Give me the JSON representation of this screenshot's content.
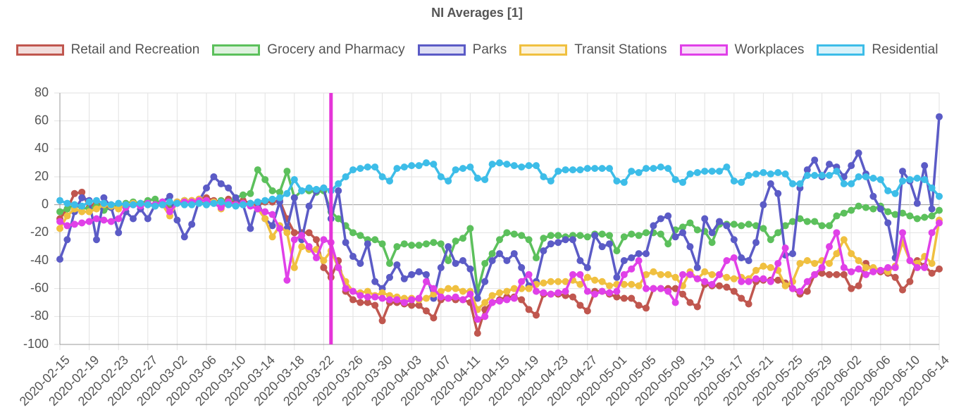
{
  "chart_data": {
    "type": "line",
    "title": "NI Averages [1]",
    "categories": [
      "2020-02-15",
      null,
      null,
      null,
      "2020-02-19",
      null,
      null,
      null,
      "2020-02-23",
      null,
      null,
      null,
      "2020-02-27",
      null,
      null,
      null,
      "2020-03-02",
      null,
      null,
      null,
      "2020-03-06",
      null,
      null,
      null,
      "2020-03-10",
      null,
      null,
      null,
      "2020-03-14",
      null,
      null,
      null,
      "2020-03-18",
      null,
      null,
      null,
      "2020-03-22",
      null,
      null,
      null,
      "2020-03-26",
      null,
      null,
      null,
      "2020-03-30",
      null,
      null,
      null,
      "2020-04-03",
      null,
      null,
      null,
      "2020-04-07",
      null,
      null,
      null,
      "2020-04-11",
      null,
      null,
      null,
      "2020-04-15",
      null,
      null,
      null,
      "2020-04-19",
      null,
      null,
      null,
      "2020-04-23",
      null,
      null,
      null,
      "2020-04-27",
      null,
      null,
      null,
      "2020-05-01",
      null,
      null,
      null,
      "2020-05-05",
      null,
      null,
      null,
      "2020-05-09",
      null,
      null,
      null,
      "2020-05-13",
      null,
      null,
      null,
      "2020-05-17",
      null,
      null,
      null,
      "2020-05-21",
      null,
      null,
      null,
      "2020-05-25",
      null,
      null,
      null,
      "2020-05-29",
      null,
      null,
      null,
      "2020-06-02",
      null,
      null,
      null,
      "2020-06-06",
      null,
      null,
      null,
      "2020-06-10",
      null,
      null,
      null,
      "2020-06-14"
    ],
    "series": [
      {
        "name": "Retail and Recreation",
        "color": "#c0574f",
        "values": [
          -10,
          -3,
          8,
          9,
          -2,
          2,
          -3,
          0,
          -2,
          -1,
          0,
          -1,
          1,
          0,
          2,
          0,
          2,
          3,
          3,
          4,
          5,
          3,
          2,
          4,
          2,
          3,
          1,
          0,
          2,
          2,
          3,
          -10,
          -20,
          -20,
          -20,
          -25,
          -45,
          -52,
          -40,
          -62,
          -68,
          -70,
          -70,
          -72,
          -83,
          -70,
          -70,
          -71,
          -72,
          -72,
          -76,
          -81,
          -68,
          -67,
          -68,
          -68,
          -70,
          -92,
          -75,
          -70,
          -68,
          -66,
          -66,
          -68,
          -75,
          -79,
          -64,
          -64,
          -64,
          -65,
          -66,
          -72,
          -76,
          -62,
          -62,
          -64,
          -66,
          -67,
          -67,
          -72,
          -74,
          -60,
          -60,
          -60,
          -60,
          -64,
          -70,
          -73,
          -57,
          -58,
          -58,
          -59,
          -62,
          -67,
          -71,
          -55,
          -54,
          -54,
          -54,
          -56,
          -60,
          -64,
          -62,
          -50,
          -49,
          -50,
          -50,
          -50,
          -60,
          -58,
          -42,
          -47,
          -48,
          -49,
          -52,
          -61,
          -55,
          -40,
          -44,
          -49,
          -46
        ]
      },
      {
        "name": "Grocery and Pharmacy",
        "color": "#5cc05c",
        "values": [
          -5,
          -3,
          0,
          -2,
          -3,
          -1,
          -4,
          -2,
          0,
          1,
          2,
          1,
          3,
          4,
          0,
          1,
          2,
          3,
          1,
          2,
          0,
          1,
          3,
          2,
          5,
          7,
          8,
          25,
          18,
          10,
          9,
          24,
          5,
          10,
          10,
          9,
          10,
          -5,
          -10,
          -15,
          -20,
          -22,
          -25,
          -25,
          -28,
          -42,
          -30,
          -28,
          -29,
          -29,
          -28,
          -27,
          -28,
          -40,
          -26,
          -24,
          -17,
          -62,
          -42,
          -35,
          -25,
          -20,
          -21,
          -22,
          -25,
          -38,
          -24,
          -22,
          -22,
          -23,
          -22,
          -22,
          -23,
          -21,
          -21,
          -22,
          -33,
          -23,
          -21,
          -22,
          -20,
          -20,
          -21,
          -28,
          -18,
          -16,
          -13,
          -18,
          -19,
          -27,
          -14,
          -14,
          -14,
          -15,
          -14,
          -15,
          -17,
          -25,
          -20,
          -15,
          -12,
          -10,
          -12,
          -12,
          -15,
          -15,
          -8,
          -6,
          -4,
          -1,
          -2,
          -3,
          -1,
          -5,
          -7,
          -6,
          -8,
          -10,
          -9,
          -8,
          -4
        ]
      },
      {
        "name": "Parks",
        "color": "#5b5bc6",
        "values": [
          -39,
          -25,
          -5,
          5,
          3,
          -25,
          5,
          -2,
          -20,
          -5,
          -10,
          -3,
          -10,
          0,
          2,
          6,
          -11,
          -23,
          -14,
          3,
          12,
          20,
          15,
          12,
          5,
          0,
          -17,
          2,
          -10,
          -15,
          2,
          -17,
          5,
          -25,
          -1,
          10,
          12,
          -10,
          10,
          -27,
          -37,
          -42,
          -28,
          -55,
          -60,
          -52,
          -43,
          -53,
          -50,
          -48,
          -50,
          -67,
          -45,
          -30,
          -42,
          -40,
          -46,
          -67,
          -55,
          -40,
          -35,
          -40,
          -35,
          -45,
          -58,
          -55,
          -33,
          -28,
          -27,
          -25,
          -25,
          -40,
          -45,
          -22,
          -30,
          -28,
          -52,
          -40,
          -38,
          -35,
          -35,
          -15,
          -10,
          -8,
          -23,
          -20,
          -30,
          -45,
          -10,
          -20,
          -12,
          -15,
          -25,
          -38,
          -40,
          -27,
          0,
          15,
          8,
          -36,
          -35,
          12,
          25,
          32,
          20,
          29,
          27,
          20,
          28,
          37,
          22,
          6,
          -3,
          -13,
          -38,
          24,
          17,
          1,
          28,
          -3,
          63
        ]
      },
      {
        "name": "Transit Stations",
        "color": "#f0c040",
        "values": [
          -17,
          -8,
          -3,
          -5,
          -5,
          -3,
          0,
          -1,
          -3,
          0,
          1,
          0,
          0,
          -1,
          0,
          -8,
          2,
          3,
          3,
          4,
          3,
          2,
          -3,
          2,
          0,
          1,
          0,
          -3,
          -10,
          -23,
          -15,
          -20,
          -45,
          -30,
          -32,
          -32,
          -40,
          -33,
          -45,
          -55,
          -62,
          -63,
          -62,
          -65,
          -63,
          -65,
          -66,
          -67,
          -67,
          -68,
          -67,
          -64,
          -62,
          -60,
          -60,
          -62,
          -62,
          -75,
          -70,
          -65,
          -63,
          -62,
          -60,
          -60,
          -60,
          -57,
          -56,
          -55,
          -55,
          -55,
          -54,
          -57,
          -52,
          -54,
          -55,
          -58,
          -57,
          -57,
          -57,
          -58,
          -50,
          -48,
          -50,
          -50,
          -52,
          -58,
          -48,
          -53,
          -48,
          -50,
          -50,
          -52,
          -53,
          -52,
          -53,
          -47,
          -44,
          -45,
          -47,
          -58,
          -55,
          -42,
          -40,
          -42,
          -40,
          -42,
          -35,
          -25,
          -35,
          -40,
          -45,
          -45,
          -47,
          -48,
          -44,
          -27,
          -40,
          -42,
          -37,
          -42,
          -11
        ]
      },
      {
        "name": "Workplaces",
        "color": "#e040e8",
        "values": [
          -12,
          -15,
          -14,
          -13,
          -12,
          -10,
          -11,
          -12,
          -10,
          -2,
          0,
          -1,
          1,
          0,
          2,
          -5,
          1,
          2,
          2,
          3,
          3,
          1,
          -2,
          2,
          0,
          1,
          -1,
          -3,
          -5,
          -7,
          -17,
          -54,
          -25,
          -22,
          -30,
          -38,
          -25,
          -27,
          -45,
          -60,
          -62,
          -65,
          -66,
          -66,
          -67,
          -68,
          -68,
          -70,
          -68,
          -67,
          -55,
          -60,
          -66,
          -67,
          -66,
          -68,
          -64,
          -82,
          -80,
          -70,
          -69,
          -68,
          -67,
          -55,
          -50,
          -62,
          -63,
          -64,
          -63,
          -62,
          -50,
          -50,
          -62,
          -64,
          -62,
          -63,
          -62,
          -50,
          -46,
          -40,
          -60,
          -60,
          -60,
          -62,
          -70,
          -50,
          -50,
          -53,
          -55,
          -57,
          -50,
          -40,
          -38,
          -55,
          -55,
          -53,
          -53,
          -55,
          -42,
          -31,
          -60,
          -62,
          -55,
          -50,
          -45,
          -30,
          -20,
          -45,
          -48,
          -46,
          -50,
          -48,
          -47,
          -45,
          -45,
          -20,
          -40,
          -45,
          -45,
          -20,
          -13
        ]
      },
      {
        "name": "Residential",
        "color": "#3dbde8",
        "values": [
          3,
          1,
          0,
          -1,
          2,
          3,
          1,
          0,
          1,
          0,
          0,
          1,
          0,
          -1,
          0,
          2,
          1,
          0,
          0,
          1,
          0,
          1,
          2,
          0,
          -1,
          0,
          1,
          2,
          3,
          4,
          5,
          8,
          18,
          10,
          12,
          11,
          12,
          10,
          15,
          20,
          25,
          26,
          27,
          27,
          20,
          17,
          26,
          27,
          28,
          28,
          30,
          29,
          20,
          17,
          25,
          26,
          27,
          19,
          18,
          29,
          30,
          29,
          28,
          27,
          28,
          28,
          20,
          17,
          24,
          25,
          25,
          25,
          26,
          26,
          26,
          26,
          17,
          16,
          24,
          23,
          26,
          26,
          27,
          26,
          18,
          16,
          22,
          23,
          24,
          24,
          24,
          27,
          17,
          16,
          21,
          22,
          23,
          22,
          23,
          22,
          15,
          15,
          21,
          21,
          21,
          21,
          24,
          15,
          15,
          20,
          20,
          19,
          18,
          10,
          8,
          17,
          18,
          19,
          18,
          12,
          6
        ]
      }
    ],
    "ylim": [
      -100,
      80
    ],
    "yticks": [
      -100,
      -80,
      -60,
      -40,
      -20,
      0,
      20,
      40,
      60,
      80
    ],
    "grid": true,
    "vertical_line": {
      "index": 37,
      "color": "#e535d8"
    }
  }
}
